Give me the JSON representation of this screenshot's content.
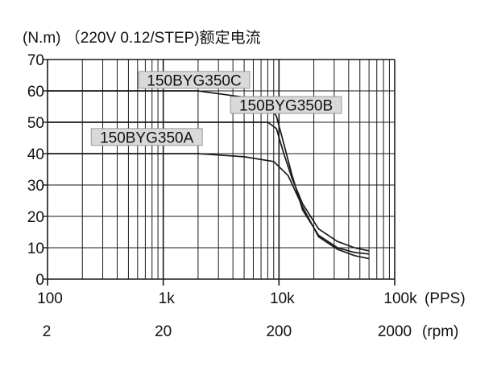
{
  "chart_data": {
    "type": "line",
    "title": "(N.m) （220V 0.12/STEP)额定电流",
    "x_scale": "log",
    "x_range": [
      100,
      100000
    ],
    "y_range": [
      0,
      70
    ],
    "grid": true,
    "y_ticks": [
      "0",
      "10",
      "20",
      "30",
      "40",
      "50",
      "60",
      "70"
    ],
    "x_ticks_pps": [
      {
        "value": 100,
        "label": "100"
      },
      {
        "value": 1000,
        "label": "1k"
      },
      {
        "value": 10000,
        "label": "10k"
      },
      {
        "value": 100000,
        "label": "100k"
      }
    ],
    "x_unit_pps": "(PPS)",
    "x_ticks_rpm": [
      {
        "value": 100,
        "label": "2"
      },
      {
        "value": 1000,
        "label": "20"
      },
      {
        "value": 10000,
        "label": "200"
      },
      {
        "value": 100000,
        "label": "2000"
      }
    ],
    "x_unit_rpm": "(rpm)",
    "series": [
      {
        "name": "150BYG350C",
        "label_anchor": {
          "x": 1850,
          "y": 63.5
        },
        "x": [
          100,
          2000,
          5000,
          8000,
          9500,
          10500,
          13000,
          16000,
          22000,
          32000,
          45000,
          60000
        ],
        "y": [
          60,
          60,
          58,
          55.5,
          52,
          46,
          33,
          22,
          14,
          10,
          8.5,
          8
        ]
      },
      {
        "name": "150BYG350B",
        "label_anchor": {
          "x": 11500,
          "y": 55.5
        },
        "x": [
          100,
          8000,
          9500,
          11000,
          13000,
          16000,
          22000,
          32000,
          45000,
          60000
        ],
        "y": [
          50,
          50,
          48,
          40,
          32,
          24,
          16,
          12,
          10,
          9
        ]
      },
      {
        "name": "150BYG350A",
        "label_anchor": {
          "x": 720,
          "y": 45.3
        },
        "x": [
          100,
          2000,
          5000,
          9000,
          12000,
          16000,
          22000,
          32000,
          45000,
          60000
        ],
        "y": [
          40,
          40,
          39,
          37.5,
          33,
          23,
          13.5,
          9.5,
          7.5,
          6.5
        ]
      }
    ]
  },
  "colors": {
    "line": "#1a1a1a",
    "grid": "#1a1a1a",
    "label_bg": "#d9d9d9"
  }
}
